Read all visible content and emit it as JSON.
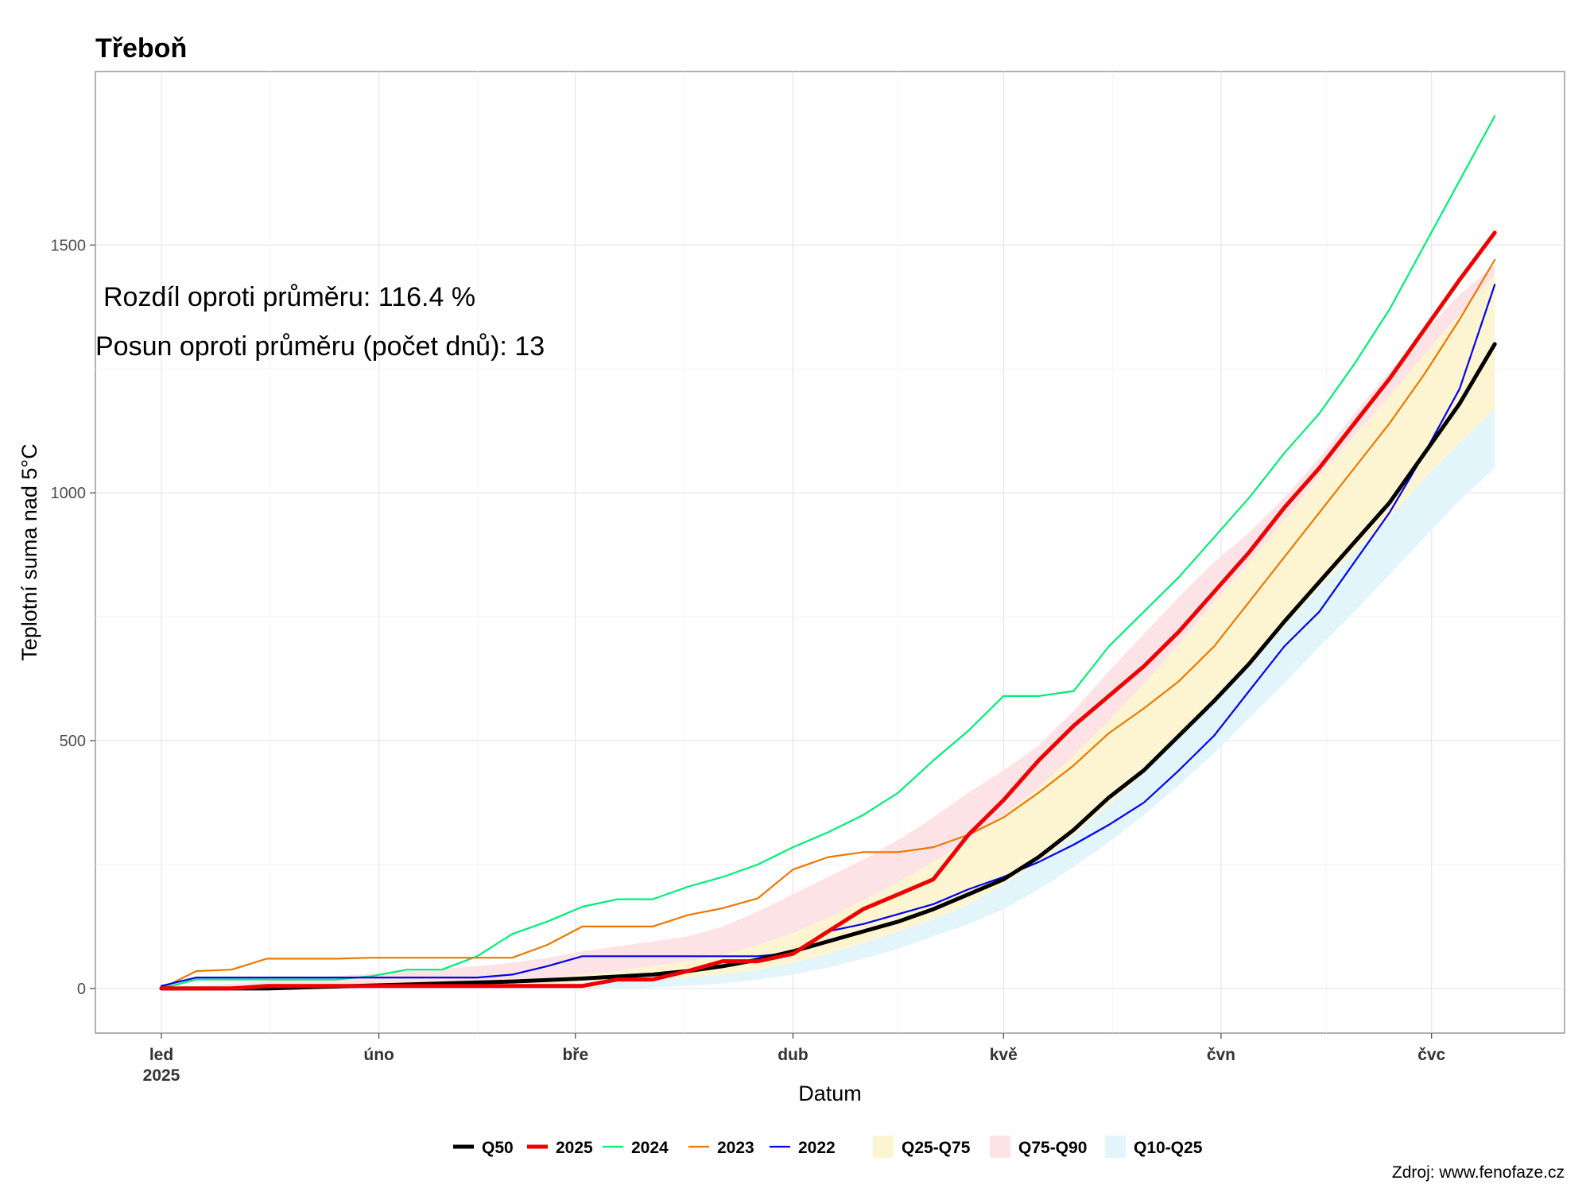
{
  "chart_data": {
    "type": "line",
    "title": "Třeboň",
    "xlabel": "Datum",
    "ylabel": "Teplotní suma nad 5°C",
    "ylim": [
      -90,
      1850
    ],
    "yticks": [
      0,
      500,
      1000,
      1500
    ],
    "x_unit": "day of year 2025",
    "xlim": [
      1,
      192
    ],
    "x_ticks": [
      {
        "day": 1,
        "label": "led",
        "sublabel": "2025"
      },
      {
        "day": 32,
        "label": "úno",
        "sublabel": ""
      },
      {
        "day": 60,
        "label": "bře",
        "sublabel": ""
      },
      {
        "day": 91,
        "label": "dub",
        "sublabel": ""
      },
      {
        "day": 121,
        "label": "kvě",
        "sublabel": ""
      },
      {
        "day": 152,
        "label": "čvn",
        "sublabel": ""
      },
      {
        "day": 182,
        "label": "čvc",
        "sublabel": ""
      }
    ],
    "grid": true,
    "legend_position": "bottom",
    "annotations": [
      "Rozdíl oproti průměru: 116.4 %",
      "Posun oproti průměru (počet dnů): 13"
    ],
    "source": "Zdroj: www.fenofaze.cz",
    "x": [
      1,
      6,
      11,
      16,
      21,
      26,
      31,
      36,
      41,
      46,
      51,
      56,
      61,
      66,
      71,
      76,
      81,
      86,
      91,
      96,
      101,
      106,
      111,
      116,
      121,
      126,
      131,
      136,
      141,
      146,
      151,
      156,
      161,
      166,
      171,
      176,
      181,
      186,
      191
    ],
    "bands": [
      {
        "name": "Q25-Q75",
        "color": "#fdf5d2",
        "lower": [
          0,
          0,
          1,
          2,
          3,
          4,
          5,
          6,
          7,
          8,
          9,
          10,
          12,
          15,
          18,
          22,
          28,
          38,
          52,
          70,
          92,
          115,
          140,
          170,
          210,
          255,
          310,
          370,
          435,
          505,
          575,
          650,
          730,
          810,
          880,
          950,
          1030,
          1100,
          1170
        ],
        "upper": [
          0,
          0,
          2,
          4,
          6,
          8,
          10,
          12,
          14,
          16,
          18,
          22,
          28,
          35,
          45,
          55,
          68,
          88,
          112,
          142,
          178,
          215,
          255,
          300,
          350,
          405,
          470,
          540,
          615,
          695,
          780,
          860,
          945,
          1035,
          1115,
          1195,
          1280,
          1360,
          1440
        ]
      },
      {
        "name": "Q75-Q90",
        "color": "#fde3e6",
        "lower": [
          0,
          0,
          2,
          4,
          6,
          8,
          10,
          12,
          14,
          16,
          18,
          22,
          28,
          35,
          45,
          55,
          68,
          88,
          112,
          142,
          178,
          215,
          255,
          300,
          350,
          405,
          470,
          540,
          615,
          695,
          780,
          860,
          945,
          1035,
          1115,
          1195,
          1280,
          1360,
          1440
        ],
        "upper": [
          0,
          5,
          10,
          15,
          20,
          25,
          30,
          35,
          40,
          45,
          52,
          62,
          75,
          85,
          95,
          105,
          125,
          155,
          190,
          225,
          260,
          300,
          345,
          395,
          440,
          490,
          560,
          640,
          715,
          790,
          860,
          920,
          990,
          1070,
          1160,
          1245,
          1325,
          1400,
          1460
        ]
      },
      {
        "name": "Q10-Q25",
        "color": "#e2f5fb",
        "lower": [
          0,
          0,
          0,
          0,
          0,
          0,
          0,
          0,
          0,
          0,
          0,
          0,
          0,
          0,
          2,
          5,
          10,
          18,
          28,
          42,
          60,
          80,
          105,
          130,
          160,
          200,
          245,
          295,
          350,
          410,
          475,
          545,
          615,
          690,
          760,
          835,
          910,
          985,
          1050
        ],
        "upper": [
          0,
          0,
          1,
          2,
          3,
          4,
          5,
          6,
          7,
          8,
          9,
          10,
          12,
          15,
          18,
          22,
          28,
          38,
          52,
          70,
          92,
          115,
          140,
          170,
          210,
          255,
          310,
          370,
          435,
          505,
          575,
          650,
          730,
          810,
          880,
          950,
          1030,
          1100,
          1170
        ]
      }
    ],
    "series": [
      {
        "name": "2024",
        "color": "#00ee76",
        "width": 2.2,
        "values": [
          0,
          18,
          18,
          18,
          18,
          18,
          25,
          38,
          38,
          65,
          110,
          135,
          165,
          180,
          180,
          205,
          225,
          250,
          285,
          315,
          350,
          395,
          460,
          520,
          590,
          590,
          600,
          690,
          760,
          830,
          910,
          990,
          1080,
          1160,
          1260,
          1370,
          1500,
          1630,
          1760
        ]
      },
      {
        "name": "2023",
        "color": "#ee7700",
        "width": 2.2,
        "values": [
          0,
          35,
          38,
          60,
          60,
          60,
          62,
          62,
          62,
          62,
          62,
          88,
          125,
          125,
          125,
          148,
          162,
          182,
          240,
          265,
          275,
          275,
          285,
          310,
          345,
          395,
          450,
          515,
          565,
          620,
          690,
          780,
          870,
          960,
          1050,
          1140,
          1240,
          1350,
          1470
        ]
      },
      {
        "name": "2022",
        "color": "#0000ee",
        "width": 2.2,
        "values": [
          5,
          22,
          22,
          22,
          22,
          22,
          22,
          22,
          22,
          22,
          28,
          45,
          65,
          65,
          65,
          65,
          65,
          65,
          72,
          115,
          130,
          150,
          170,
          200,
          225,
          255,
          290,
          330,
          375,
          440,
          510,
          600,
          690,
          760,
          860,
          960,
          1080,
          1210,
          1420
        ]
      },
      {
        "name": "Q50",
        "color": "#000000",
        "width": 5,
        "values": [
          0,
          0,
          0,
          0,
          2,
          4,
          6,
          8,
          10,
          12,
          14,
          17,
          20,
          24,
          28,
          35,
          45,
          58,
          75,
          95,
          115,
          135,
          160,
          190,
          220,
          265,
          320,
          385,
          440,
          510,
          580,
          655,
          740,
          820,
          900,
          980,
          1080,
          1180,
          1300
        ]
      },
      {
        "name": "2025",
        "color": "#ee0000",
        "width": 5,
        "values": [
          0,
          0,
          0,
          5,
          5,
          5,
          5,
          5,
          5,
          5,
          5,
          5,
          5,
          18,
          18,
          35,
          55,
          55,
          70,
          115,
          160,
          190,
          220,
          310,
          380,
          460,
          530,
          590,
          650,
          720,
          800,
          880,
          970,
          1050,
          1140,
          1230,
          1330,
          1430,
          1525
        ]
      }
    ]
  },
  "legend": [
    {
      "label": "Q50",
      "kind": "line",
      "color": "#000000",
      "width": 5
    },
    {
      "label": "2025",
      "kind": "line",
      "color": "#ee0000",
      "width": 5
    },
    {
      "label": "2024",
      "kind": "line",
      "color": "#00ee76",
      "width": 2.2
    },
    {
      "label": "2023",
      "kind": "line",
      "color": "#ee7700",
      "width": 2.2
    },
    {
      "label": "2022",
      "kind": "line",
      "color": "#0000ee",
      "width": 2.2
    },
    {
      "label": "Q25-Q75",
      "kind": "fill",
      "color": "#fdf5d2"
    },
    {
      "label": "Q75-Q90",
      "kind": "fill",
      "color": "#fde3e6"
    },
    {
      "label": "Q10-Q25",
      "kind": "fill",
      "color": "#e2f5fb"
    }
  ]
}
